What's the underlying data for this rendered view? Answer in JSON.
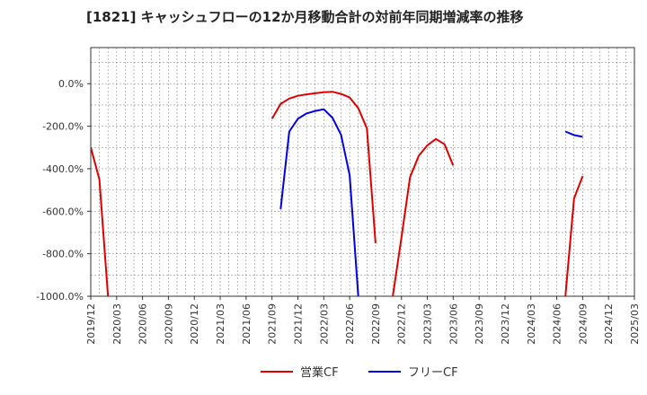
{
  "chart_data": {
    "type": "line",
    "title": "[1821]  キャッシュフローの12か月移動合計の対前年同期増減率の推移",
    "xlabel": "",
    "ylabel": "",
    "ylim": [
      -1000,
      170
    ],
    "y_ticks": [
      0,
      -200,
      -400,
      -600,
      -800,
      -1000
    ],
    "y_tick_labels": [
      "0.0%",
      "-200.0%",
      "-400.0%",
      "-600.0%",
      "-800.0%",
      "-1000.0%"
    ],
    "x_tick_labels": [
      "2019/12",
      "2020/03",
      "2020/06",
      "2020/09",
      "2020/12",
      "2021/03",
      "2021/06",
      "2021/09",
      "2021/12",
      "2022/03",
      "2022/06",
      "2022/09",
      "2022/12",
      "2023/03",
      "2023/06",
      "2023/09",
      "2023/12",
      "2024/03",
      "2024/06",
      "2024/09",
      "2024/12",
      "2025/03"
    ],
    "x_range_months": [
      0,
      63
    ],
    "grid": true,
    "legend_position": "bottom-center",
    "series": [
      {
        "name": "営業CF",
        "color": "#e00000",
        "segments": [
          [
            [
              0,
              -300
            ],
            [
              1,
              -450
            ],
            [
              2,
              -1000
            ]
          ],
          [
            [
              21,
              -165
            ],
            [
              22,
              -95
            ],
            [
              23,
              -70
            ],
            [
              24,
              -57
            ],
            [
              25,
              -50
            ],
            [
              26,
              -45
            ],
            [
              27,
              -40
            ],
            [
              28,
              -38
            ],
            [
              29,
              -48
            ],
            [
              30,
              -65
            ],
            [
              31,
              -115
            ],
            [
              32,
              -210
            ],
            [
              33,
              -750
            ]
          ],
          [
            [
              35,
              -1000
            ],
            [
              36,
              -725
            ],
            [
              37,
              -440
            ],
            [
              38,
              -340
            ],
            [
              39,
              -290
            ],
            [
              40,
              -260
            ],
            [
              41,
              -285
            ],
            [
              42,
              -385
            ]
          ],
          [
            [
              55,
              -1000
            ],
            [
              56,
              -540
            ],
            [
              57,
              -435
            ]
          ]
        ]
      },
      {
        "name": "フリーCF",
        "color": "#0000e0",
        "segments": [
          [
            [
              22,
              -590
            ],
            [
              23,
              -225
            ],
            [
              24,
              -165
            ],
            [
              25,
              -140
            ],
            [
              26,
              -128
            ],
            [
              27,
              -120
            ],
            [
              28,
              -160
            ],
            [
              29,
              -240
            ],
            [
              30,
              -430
            ],
            [
              31,
              -1000
            ]
          ],
          [
            [
              55,
              -225
            ],
            [
              56,
              -242
            ],
            [
              57,
              -250
            ]
          ]
        ]
      }
    ]
  }
}
